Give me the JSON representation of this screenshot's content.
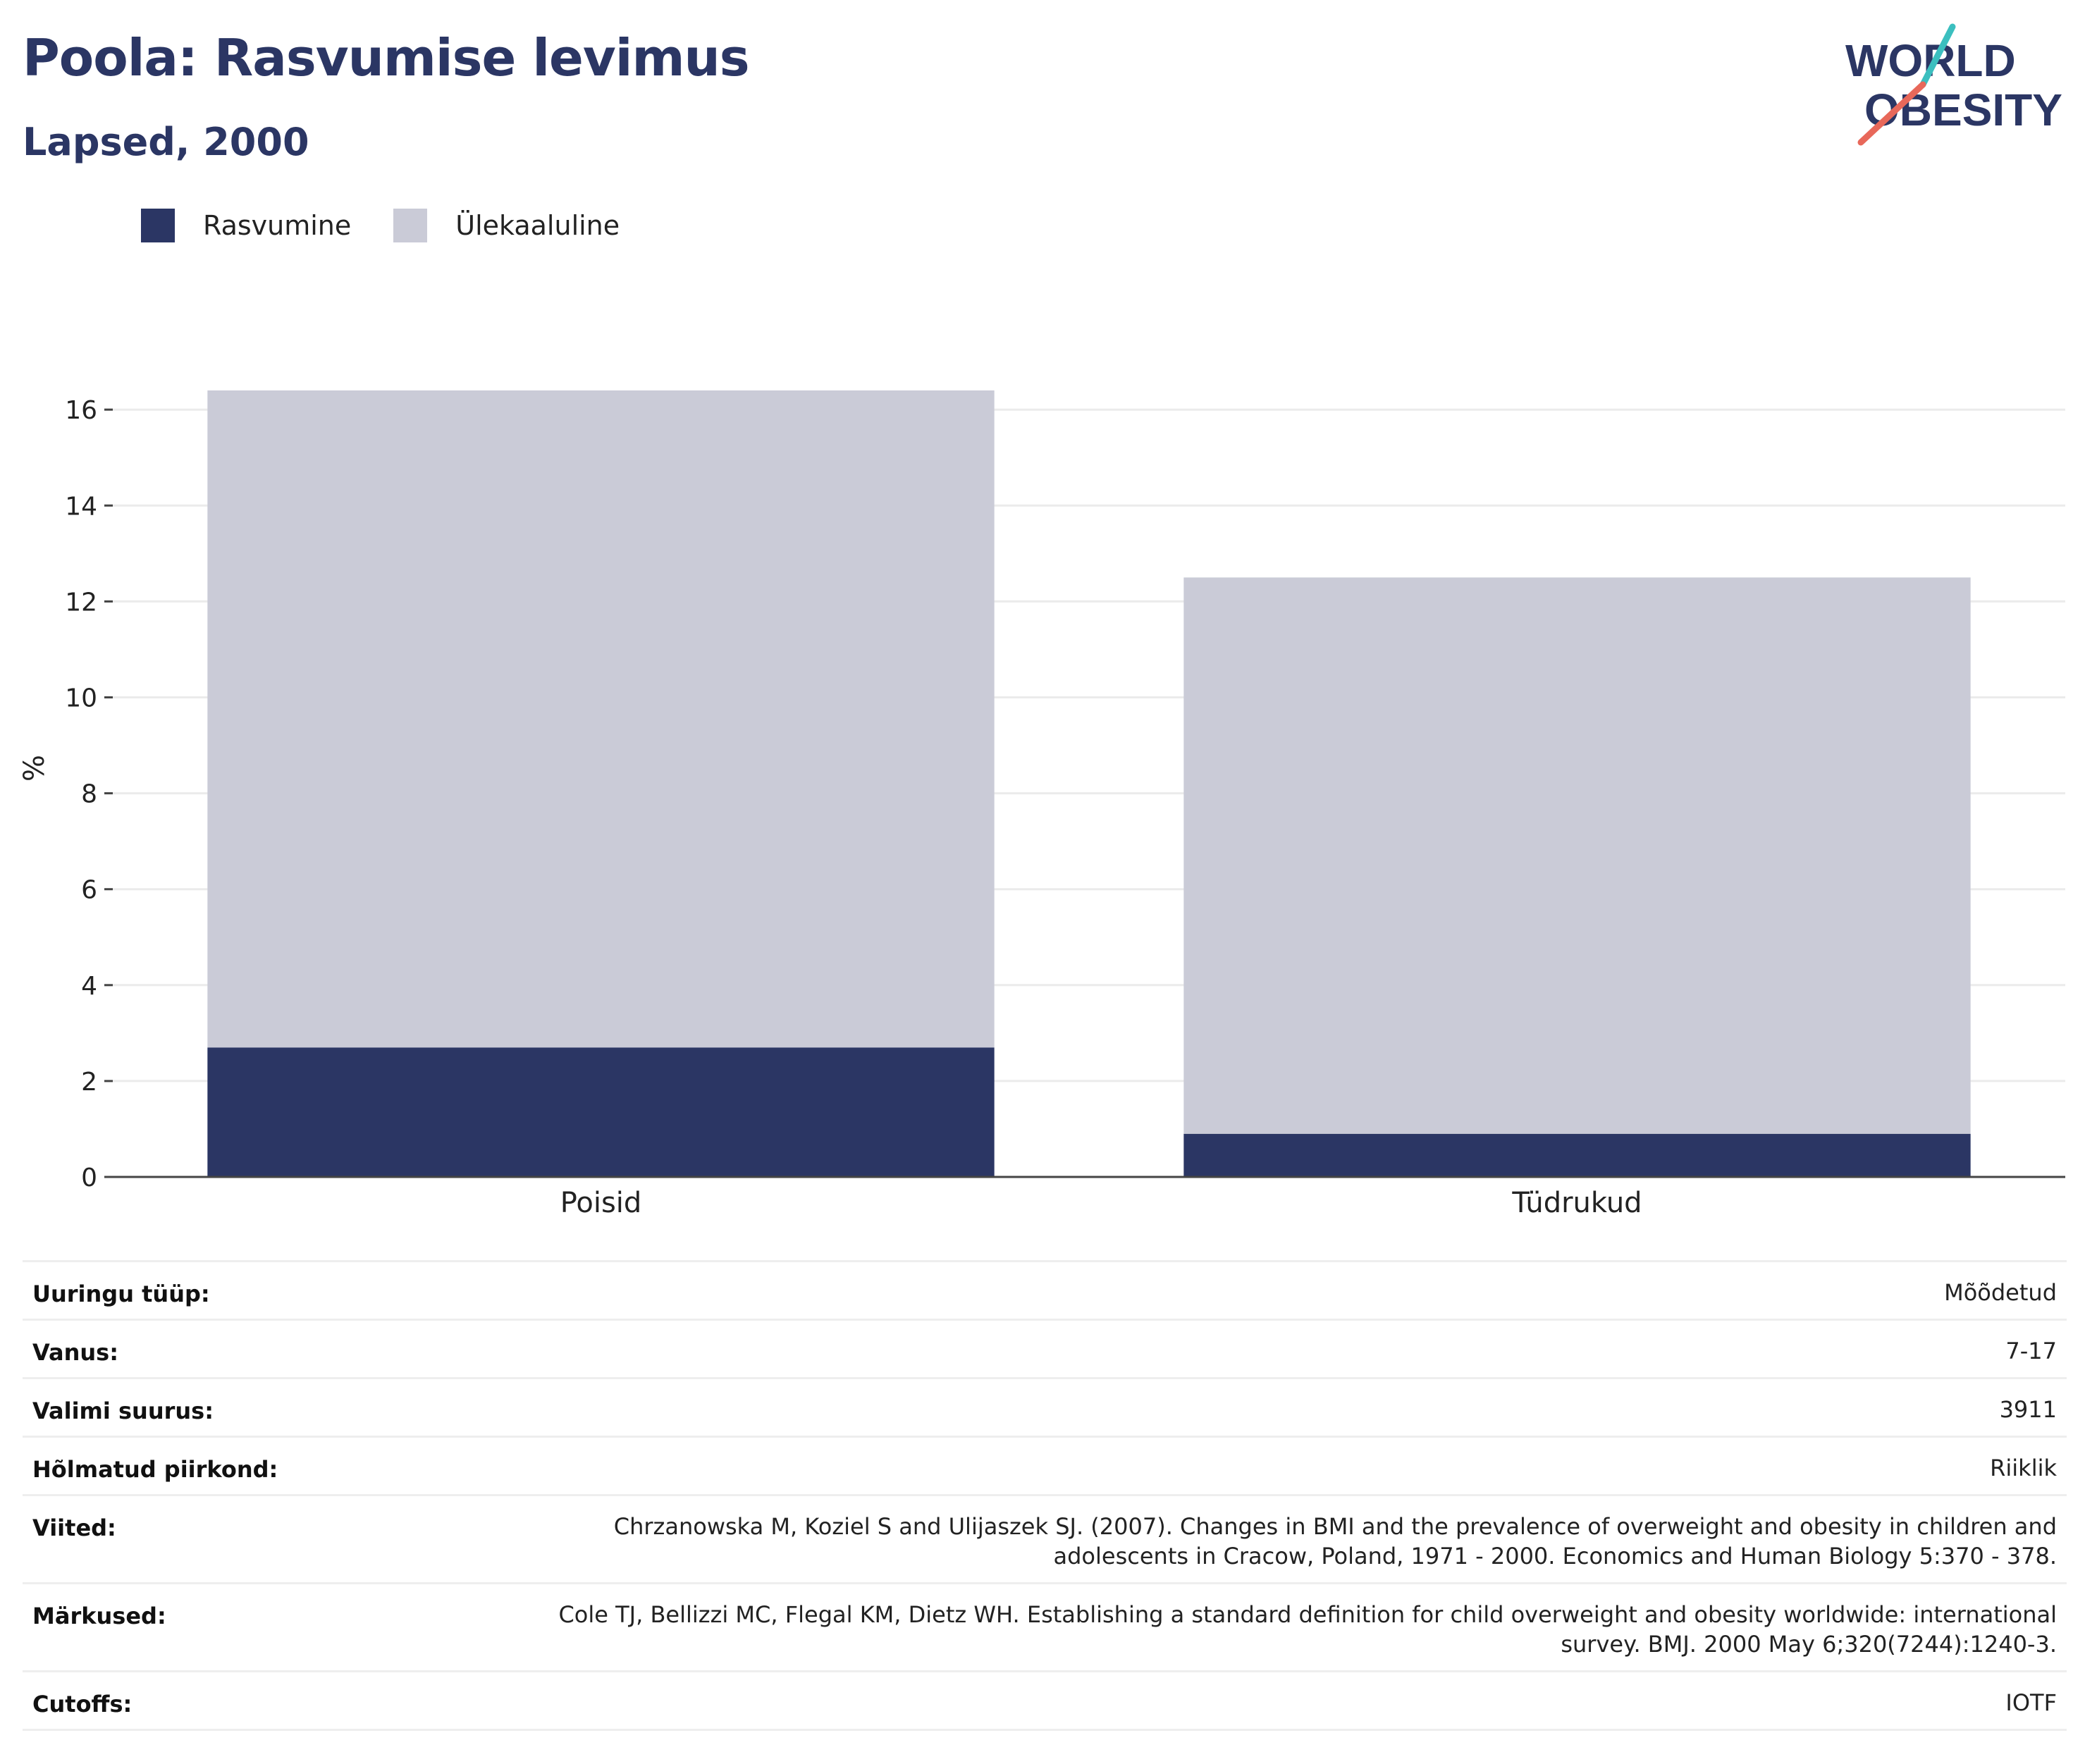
{
  "header": {
    "title": "Poola: Rasvumise levimus",
    "subtitle": "Lapsed, 2000"
  },
  "logo": {
    "line1": "WORLD",
    "line2": "OBESITY"
  },
  "legend": {
    "items": [
      {
        "label": "Rasvumine",
        "color": "#2b3664"
      },
      {
        "label": "Ülekaaluline",
        "color": "#cacbd7"
      }
    ]
  },
  "chart_data": {
    "type": "bar",
    "stacked": true,
    "categories": [
      "Poisid",
      "Tüdrukud"
    ],
    "series": [
      {
        "name": "Rasvumine",
        "values": [
          2.7,
          0.9
        ],
        "color": "#2b3664"
      },
      {
        "name": "Ülekaaluline",
        "values": [
          13.7,
          11.6
        ],
        "color": "#cacbd7"
      }
    ],
    "ylabel": "%",
    "ylim": [
      0,
      16.4
    ],
    "yticks": [
      0,
      2,
      4,
      6,
      8,
      10,
      12,
      14,
      16
    ],
    "grid": true,
    "legend_position": "top-left"
  },
  "info": {
    "rows": [
      {
        "label": "Uuringu tüüp:",
        "value": "Mõõdetud"
      },
      {
        "label": "Vanus:",
        "value": "7-17"
      },
      {
        "label": "Valimi suurus:",
        "value": "3911"
      },
      {
        "label": "Hõlmatud piirkond:",
        "value": "Riiklik"
      },
      {
        "label": "Viited:",
        "value": "Chrzanowska M, Koziel S and Ulijaszek SJ. (2007). Changes in BMI and the prevalence of overweight and obesity in children and",
        "value2": "adolescents in Cracow, Poland, 1971 - 2000. Economics and Human Biology 5:370 - 378."
      },
      {
        "label": "Märkused:",
        "value": "Cole TJ, Bellizzi MC, Flegal KM, Dietz WH. Establishing a standard definition for child overweight and obesity worldwide: international",
        "value2": "survey. BMJ. 2000 May 6;320(7244):1240-3."
      },
      {
        "label": "Cutoffs:",
        "value": "IOTF"
      }
    ]
  }
}
